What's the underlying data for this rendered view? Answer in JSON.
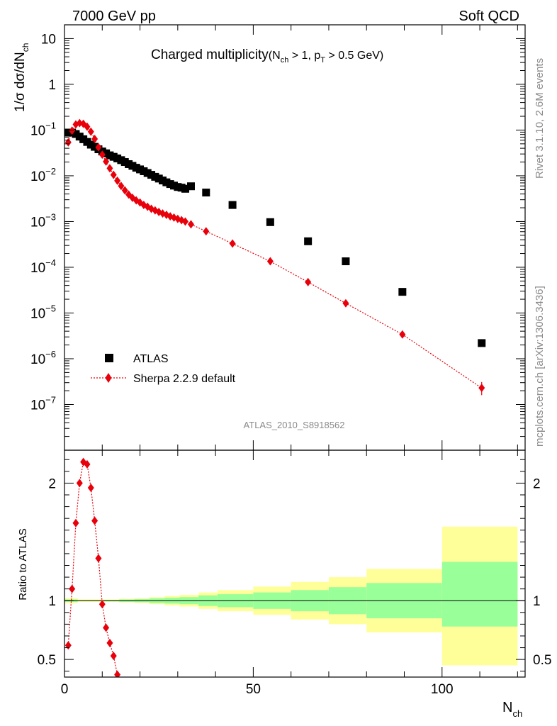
{
  "header": {
    "left": "7000 GeV pp",
    "right": "Soft QCD"
  },
  "side_labels": {
    "rivet": "Rivet 3.1.10,  2.6M events",
    "mcplots": "mcplots.cern.ch [arXiv:1306.3436]"
  },
  "chart_data": {
    "type": "scatter",
    "analysis_label": "ATLAS_2010_S8918562",
    "title": {
      "main": "Charged multiplicity",
      "paren_open": "(N",
      "sub1": "ch",
      "mid": " > 1, p",
      "sub2": "T",
      "end": " > 0.5 GeV)"
    },
    "upper": {
      "ylabel": "1/σ dσ/dN",
      "ylabel_sub": "ch",
      "yscale": "log",
      "ylim": [
        1e-08,
        20
      ],
      "yticks": [
        {
          "v": 10,
          "m": "10",
          "e": ""
        },
        {
          "v": 1,
          "m": "1",
          "e": ""
        },
        {
          "v": 0.1,
          "m": "10",
          "e": "−1"
        },
        {
          "v": 0.01,
          "m": "10",
          "e": "−2"
        },
        {
          "v": 0.001,
          "m": "10",
          "e": "−3"
        },
        {
          "v": 0.0001,
          "m": "10",
          "e": "−4"
        },
        {
          "v": 1e-05,
          "m": "10",
          "e": "−5"
        },
        {
          "v": 1e-06,
          "m": "10",
          "e": "−6"
        },
        {
          "v": 1e-07,
          "m": "10",
          "e": "−7"
        }
      ]
    },
    "lower": {
      "ylabel": "Ratio to ATLAS",
      "ylim": [
        0.35,
        2.28
      ],
      "yticks": [
        0.5,
        1,
        2
      ],
      "ytick_labels": [
        "0.5",
        "1",
        "2"
      ]
    },
    "xlabel": "N",
    "xlabel_sub": "ch",
    "xlim": [
      0,
      122
    ],
    "xticks": [
      0,
      50,
      100
    ],
    "xtick_labels": [
      "0",
      "50",
      "100"
    ],
    "legend": {
      "placement": "lower-left",
      "atlas": "ATLAS",
      "sherpa": "Sherpa 2.2.9 default"
    },
    "colors": {
      "atlas": "#000000",
      "sherpa": "#e8000b",
      "band_outer": "#ffff99",
      "band_inner": "#99ff99"
    },
    "series": [
      {
        "name": "ATLAS",
        "x": [
          1,
          2,
          3,
          4,
          5,
          6,
          7,
          8,
          9,
          10,
          11,
          12,
          13,
          14,
          15,
          16,
          17,
          18,
          19,
          20,
          21,
          22,
          23,
          24,
          25,
          26,
          27,
          28,
          29,
          30,
          31,
          32,
          33.5,
          37.5,
          44.5,
          54.5,
          64.5,
          74.5,
          89.5,
          110.5
        ],
        "y": [
          0.088,
          0.088,
          0.082,
          0.072,
          0.063,
          0.055,
          0.048,
          0.043,
          0.038,
          0.034,
          0.031,
          0.028,
          0.026,
          0.024,
          0.022,
          0.02,
          0.018,
          0.0165,
          0.015,
          0.0138,
          0.0126,
          0.0115,
          0.0105,
          0.0095,
          0.0087,
          0.0079,
          0.0072,
          0.0066,
          0.0061,
          0.0057,
          0.0055,
          0.0052,
          0.0059,
          0.0043,
          0.0023,
          0.00097,
          0.00037,
          0.000135,
          2.9e-05,
          2.2e-06
        ]
      },
      {
        "name": "Sherpa 2.2.9 default",
        "x": [
          1,
          2,
          3,
          4,
          5,
          6,
          7,
          8,
          9,
          10,
          11,
          12,
          13,
          14,
          15,
          16,
          17,
          18,
          19,
          20,
          21,
          22,
          23,
          24,
          25,
          26,
          27,
          28,
          29,
          30,
          31,
          32,
          33.5,
          37.5,
          44.5,
          54.5,
          64.5,
          74.5,
          89.5,
          110.5
        ],
        "y": [
          0.054,
          0.097,
          0.133,
          0.142,
          0.137,
          0.118,
          0.092,
          0.064,
          0.042,
          0.029,
          0.0205,
          0.0146,
          0.0105,
          0.0078,
          0.006,
          0.0048,
          0.0039,
          0.0033,
          0.0029,
          0.0026,
          0.0023,
          0.0021,
          0.0019,
          0.00175,
          0.00162,
          0.0015,
          0.0014,
          0.0013,
          0.00122,
          0.00114,
          0.00107,
          0.001,
          0.00087,
          0.00061,
          0.00033,
          0.000135,
          4.75e-05,
          1.63e-05,
          3.4e-06,
          2.3e-07
        ]
      }
    ],
    "ratio": {
      "x": [
        1,
        2,
        3,
        4,
        5,
        6,
        7,
        8,
        9,
        10,
        11,
        12,
        13,
        14
      ],
      "y": [
        0.62,
        1.1,
        1.66,
        2.0,
        2.18,
        2.16,
        1.96,
        1.68,
        1.36,
        0.97,
        0.77,
        0.64,
        0.53,
        0.37
      ]
    },
    "bands": [
      {
        "x0": 0,
        "x1": 1.5,
        "o": [
          0.98,
          1.02
        ],
        "i": [
          0.99,
          1.01
        ]
      },
      {
        "x0": 1.5,
        "x1": 2.5,
        "o": [
          0.975,
          1.025
        ],
        "i": [
          0.99,
          1.01
        ]
      },
      {
        "x0": 2.5,
        "x1": 3.5,
        "o": [
          0.98,
          1.02
        ],
        "i": [
          0.99,
          1.01
        ]
      },
      {
        "x0": 3.5,
        "x1": 10.5,
        "o": [
          0.99,
          1.01
        ],
        "i": [
          0.996,
          1.004
        ]
      },
      {
        "x0": 10.5,
        "x1": 14.5,
        "o": [
          0.99,
          1.01
        ],
        "i": [
          0.994,
          1.006
        ]
      },
      {
        "x0": 14.5,
        "x1": 18.5,
        "o": [
          0.985,
          1.015
        ],
        "i": [
          0.99,
          1.01
        ]
      },
      {
        "x0": 18.5,
        "x1": 22.5,
        "o": [
          0.98,
          1.02
        ],
        "i": [
          0.987,
          1.013
        ]
      },
      {
        "x0": 22.5,
        "x1": 26.5,
        "o": [
          0.97,
          1.03
        ],
        "i": [
          0.98,
          1.02
        ]
      },
      {
        "x0": 26.5,
        "x1": 30.5,
        "o": [
          0.96,
          1.04
        ],
        "i": [
          0.975,
          1.025
        ]
      },
      {
        "x0": 30.5,
        "x1": 35.5,
        "o": [
          0.95,
          1.05
        ],
        "i": [
          0.97,
          1.03
        ]
      },
      {
        "x0": 35.5,
        "x1": 40.5,
        "o": [
          0.93,
          1.07
        ],
        "i": [
          0.955,
          1.045
        ]
      },
      {
        "x0": 40.5,
        "x1": 50,
        "o": [
          0.91,
          1.09
        ],
        "i": [
          0.945,
          1.055
        ]
      },
      {
        "x0": 50,
        "x1": 60,
        "o": [
          0.88,
          1.12
        ],
        "i": [
          0.93,
          1.07
        ]
      },
      {
        "x0": 60,
        "x1": 70,
        "o": [
          0.84,
          1.16
        ],
        "i": [
          0.91,
          1.09
        ]
      },
      {
        "x0": 70,
        "x1": 80,
        "o": [
          0.8,
          1.2
        ],
        "i": [
          0.885,
          1.115
        ]
      },
      {
        "x0": 80,
        "x1": 100,
        "o": [
          0.73,
          1.27
        ],
        "i": [
          0.85,
          1.15
        ]
      },
      {
        "x0": 100,
        "x1": 120,
        "o": [
          0.45,
          1.63
        ],
        "i": [
          0.78,
          1.33
        ]
      }
    ]
  }
}
